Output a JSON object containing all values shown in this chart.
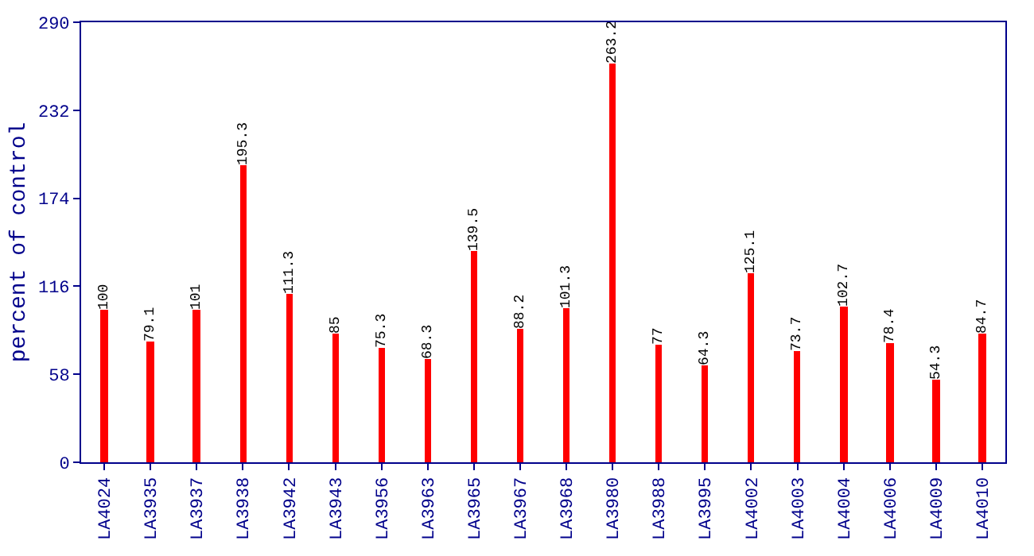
{
  "chart_data": {
    "type": "bar",
    "ylabel": "percent of control",
    "categories": [
      "LA4024",
      "LA3935",
      "LA3937",
      "LA3938",
      "LA3942",
      "LA3943",
      "LA3956",
      "LA3963",
      "LA3965",
      "LA3967",
      "LA3968",
      "LA3980",
      "LA3988",
      "LA3995",
      "LA4002",
      "LA4003",
      "LA4004",
      "LA4006",
      "LA4009",
      "LA4010"
    ],
    "values": [
      100,
      79.1,
      101,
      195.3,
      111.3,
      85,
      75.3,
      68.3,
      139.5,
      88.2,
      101.3,
      263.2,
      77,
      64.3,
      125.1,
      73.7,
      102.7,
      78.4,
      54.3,
      84.7
    ],
    "color": "#ff0000",
    "ylim": [
      0,
      290
    ],
    "yticks": [
      0,
      58,
      116,
      174,
      232,
      290
    ],
    "data_labels": true,
    "legend": false
  }
}
